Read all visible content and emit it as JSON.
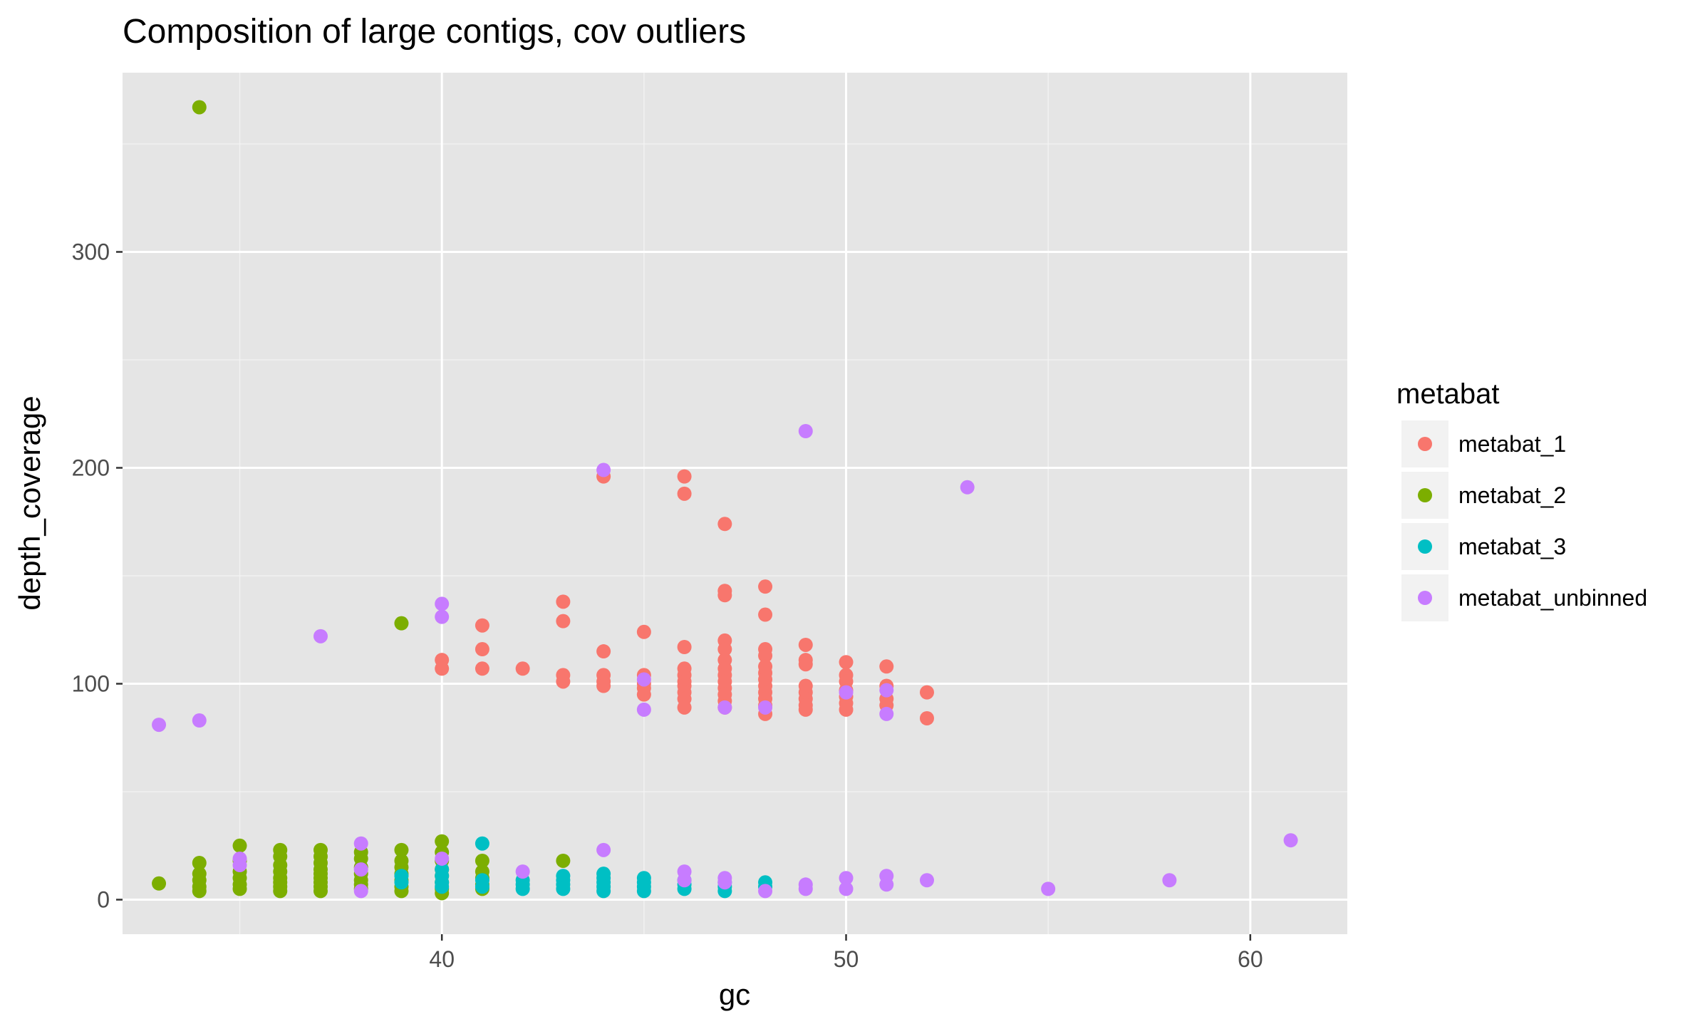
{
  "chart_data": {
    "type": "scatter",
    "title": "Composition of large contigs, cov outliers",
    "xlabel": "gc",
    "ylabel": "depth_coverage",
    "xlim": [
      32.1,
      62.4
    ],
    "ylim": [
      -16,
      383
    ],
    "x_ticks": [
      40,
      50,
      60
    ],
    "y_ticks": [
      0,
      100,
      200,
      300
    ],
    "x_tick_labels": [
      "40",
      "50",
      "60"
    ],
    "y_tick_labels": [
      "0",
      "100",
      "200",
      "300"
    ],
    "grid": true,
    "panel_background": "#e5e5e5",
    "legend": {
      "title": "metabat",
      "position": "right"
    },
    "series": [
      {
        "name": "metabat_1",
        "color": "#f8766d",
        "points": [
          [
            40,
            111
          ],
          [
            40,
            107
          ],
          [
            41,
            127
          ],
          [
            41,
            116
          ],
          [
            41,
            107
          ],
          [
            42,
            107
          ],
          [
            43,
            138
          ],
          [
            43,
            129
          ],
          [
            43,
            104
          ],
          [
            43,
            101
          ],
          [
            44,
            196
          ],
          [
            44,
            115
          ],
          [
            44,
            104
          ],
          [
            44,
            101
          ],
          [
            44,
            99
          ],
          [
            45,
            124
          ],
          [
            45,
            104
          ],
          [
            45,
            100
          ],
          [
            45,
            98
          ],
          [
            45,
            95
          ],
          [
            46,
            196
          ],
          [
            46,
            188
          ],
          [
            46,
            117
          ],
          [
            46,
            107
          ],
          [
            46,
            104
          ],
          [
            46,
            101
          ],
          [
            46,
            99
          ],
          [
            46,
            96
          ],
          [
            46,
            93
          ],
          [
            46,
            89
          ],
          [
            47,
            174
          ],
          [
            47,
            143
          ],
          [
            47,
            141
          ],
          [
            47,
            120
          ],
          [
            47,
            116
          ],
          [
            47,
            111
          ],
          [
            47,
            107
          ],
          [
            47,
            104
          ],
          [
            47,
            101
          ],
          [
            47,
            98
          ],
          [
            47,
            95
          ],
          [
            47,
            92
          ],
          [
            47,
            89
          ],
          [
            48,
            145
          ],
          [
            48,
            132
          ],
          [
            48,
            116
          ],
          [
            48,
            113
          ],
          [
            48,
            108
          ],
          [
            48,
            105
          ],
          [
            48,
            102
          ],
          [
            48,
            99
          ],
          [
            48,
            96
          ],
          [
            48,
            93
          ],
          [
            48,
            90
          ],
          [
            48,
            86
          ],
          [
            49,
            118
          ],
          [
            49,
            111
          ],
          [
            49,
            109
          ],
          [
            49,
            99
          ],
          [
            49,
            96
          ],
          [
            49,
            93
          ],
          [
            49,
            90
          ],
          [
            49,
            88
          ],
          [
            50,
            110
          ],
          [
            50,
            104
          ],
          [
            50,
            101
          ],
          [
            50,
            97
          ],
          [
            50,
            94
          ],
          [
            50,
            91
          ],
          [
            50,
            88
          ],
          [
            51,
            108
          ],
          [
            51,
            99
          ],
          [
            51,
            93
          ],
          [
            51,
            90
          ],
          [
            52,
            96
          ],
          [
            52,
            84
          ]
        ]
      },
      {
        "name": "metabat_2",
        "color": "#7cae00",
        "points": [
          [
            33,
            7.5
          ],
          [
            34,
            367
          ],
          [
            34,
            17
          ],
          [
            34,
            12
          ],
          [
            34,
            9
          ],
          [
            34,
            6
          ],
          [
            34,
            4
          ],
          [
            35,
            25
          ],
          [
            35,
            18
          ],
          [
            35,
            13
          ],
          [
            35,
            10
          ],
          [
            35,
            7
          ],
          [
            35,
            5
          ],
          [
            36,
            23
          ],
          [
            36,
            20
          ],
          [
            36,
            16
          ],
          [
            36,
            13
          ],
          [
            36,
            10
          ],
          [
            36,
            8
          ],
          [
            36,
            6
          ],
          [
            36,
            4
          ],
          [
            37,
            23
          ],
          [
            37,
            20
          ],
          [
            37,
            17
          ],
          [
            37,
            14
          ],
          [
            37,
            12
          ],
          [
            37,
            10
          ],
          [
            37,
            8
          ],
          [
            37,
            6
          ],
          [
            37,
            4
          ],
          [
            38,
            22
          ],
          [
            38,
            19
          ],
          [
            38,
            15
          ],
          [
            38,
            12
          ],
          [
            38,
            9
          ],
          [
            38,
            7
          ],
          [
            38,
            5
          ],
          [
            39,
            128
          ],
          [
            39,
            23
          ],
          [
            39,
            18
          ],
          [
            39,
            15
          ],
          [
            39,
            12
          ],
          [
            39,
            9
          ],
          [
            39,
            6
          ],
          [
            39,
            4
          ],
          [
            40,
            27
          ],
          [
            40,
            22
          ],
          [
            40,
            18
          ],
          [
            40,
            14
          ],
          [
            40,
            11
          ],
          [
            40,
            8
          ],
          [
            40,
            5
          ],
          [
            40,
            3
          ],
          [
            41,
            18
          ],
          [
            41,
            13
          ],
          [
            41,
            10
          ],
          [
            41,
            7
          ],
          [
            41,
            5
          ],
          [
            43,
            18
          ]
        ]
      },
      {
        "name": "metabat_3",
        "color": "#00bfc4",
        "points": [
          [
            39,
            11
          ],
          [
            39,
            8
          ],
          [
            40,
            14
          ],
          [
            40,
            11
          ],
          [
            40,
            8
          ],
          [
            40,
            6
          ],
          [
            41,
            26
          ],
          [
            41,
            9
          ],
          [
            41,
            6
          ],
          [
            42,
            9
          ],
          [
            42,
            7
          ],
          [
            42,
            5
          ],
          [
            43,
            11
          ],
          [
            43,
            9
          ],
          [
            43,
            7
          ],
          [
            43,
            5
          ],
          [
            44,
            12
          ],
          [
            44,
            10
          ],
          [
            44,
            8
          ],
          [
            44,
            6
          ],
          [
            44,
            4
          ],
          [
            45,
            10
          ],
          [
            45,
            8
          ],
          [
            45,
            6
          ],
          [
            45,
            4
          ],
          [
            46,
            9
          ],
          [
            46,
            7
          ],
          [
            46,
            5
          ],
          [
            47,
            8
          ],
          [
            47,
            6
          ],
          [
            47,
            4
          ],
          [
            48,
            8
          ],
          [
            48,
            6
          ]
        ]
      },
      {
        "name": "metabat_unbinned",
        "color": "#c77cff",
        "points": [
          [
            33,
            81
          ],
          [
            34,
            83
          ],
          [
            35,
            19
          ],
          [
            35,
            16
          ],
          [
            37,
            122
          ],
          [
            38,
            26
          ],
          [
            38,
            14
          ],
          [
            38,
            4
          ],
          [
            40,
            137
          ],
          [
            40,
            131
          ],
          [
            40,
            19
          ],
          [
            42,
            13
          ],
          [
            44,
            199
          ],
          [
            44,
            23
          ],
          [
            45,
            102
          ],
          [
            45,
            88
          ],
          [
            46,
            13
          ],
          [
            46,
            9
          ],
          [
            47,
            10
          ],
          [
            47,
            8
          ],
          [
            47,
            89
          ],
          [
            48,
            89
          ],
          [
            48,
            4
          ],
          [
            49,
            217
          ],
          [
            49,
            7
          ],
          [
            49,
            5
          ],
          [
            50,
            96
          ],
          [
            50,
            10
          ],
          [
            50,
            5
          ],
          [
            51,
            97
          ],
          [
            51,
            86
          ],
          [
            51,
            11
          ],
          [
            51,
            7
          ],
          [
            52,
            9
          ],
          [
            53,
            191
          ],
          [
            55,
            5
          ],
          [
            58,
            9
          ],
          [
            61,
            27.5
          ]
        ]
      }
    ]
  }
}
